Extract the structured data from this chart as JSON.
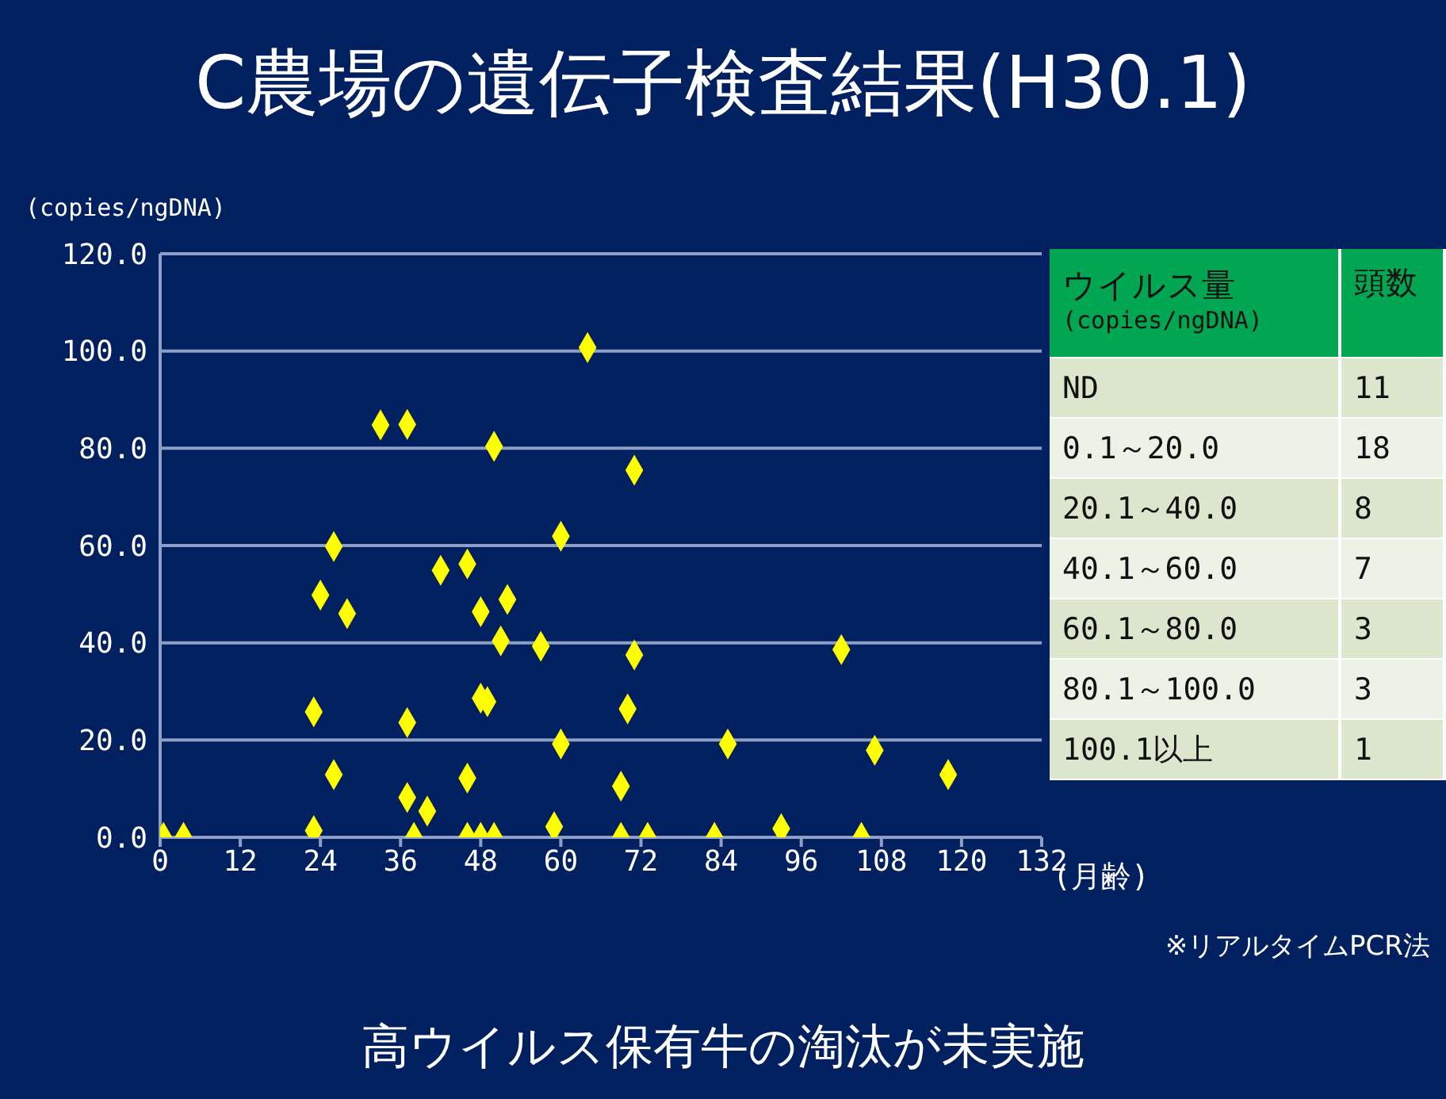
{
  "chart_data": [
    {
      "type": "scatter",
      "title": "C農場の遺伝子検査結果(H30.1)",
      "ylabel": "(copies/ngDNA)",
      "xlabel": "(月齢)",
      "annotations": [
        "※リアルタイムPCR法",
        "高ウイルス保有牛の淘汰が未実施"
      ],
      "series": [
        {
          "color": "#ffff00",
          "x": [
            0.5,
            3.5,
            33,
            37,
            26,
            24,
            28,
            42,
            23,
            37,
            26,
            37,
            40,
            23,
            38,
            64,
            50,
            71,
            60,
            46,
            52,
            48,
            51,
            57,
            71,
            48,
            49,
            70,
            60,
            85,
            46,
            69,
            59,
            46,
            48,
            50,
            69,
            73,
            83,
            102,
            107,
            118,
            93,
            105
          ],
          "values": [
            0,
            0,
            84.8,
            84.9,
            59.8,
            49.8,
            46,
            54.9,
            25.8,
            23.6,
            12.9,
            8.2,
            5.4,
            1.4,
            0,
            100.7,
            80.4,
            75.5,
            61.9,
            56.2,
            48.9,
            46.4,
            40.4,
            39.3,
            37.5,
            28.6,
            27.9,
            26.4,
            19.2,
            19.2,
            12.2,
            10.5,
            2.2,
            0,
            0,
            0,
            0,
            0,
            0,
            38.6,
            17.9,
            12.9,
            1.8,
            0
          ]
        }
      ],
      "xlim": [
        0,
        132
      ],
      "xticks": [
        0,
        12,
        24,
        36,
        48,
        60,
        72,
        84,
        96,
        108,
        120,
        132
      ],
      "ylim": [
        0,
        120
      ],
      "yticks": [
        {
          "value": 0,
          "label": "0.0"
        },
        {
          "value": 20,
          "label": "20.0"
        },
        {
          "value": 40,
          "label": "40.0"
        },
        {
          "value": 60,
          "label": "60.0"
        },
        {
          "value": 80,
          "label": "80.0"
        },
        {
          "value": 100,
          "label": "100.0"
        },
        {
          "value": 120,
          "label": "120.0"
        }
      ],
      "grid": "y",
      "marker": "diamond"
    },
    {
      "type": "other",
      "annotations": [
        "ウイルス量",
        "(copies/ngDNA)",
        "頭数"
      ],
      "categories": [
        "ND",
        "0.1～20.0",
        "20.1～40.0",
        "40.1～60.0",
        "60.1～80.0",
        "80.1～100.0",
        "100.1以上"
      ],
      "values": [
        11,
        18,
        8,
        7,
        3,
        3,
        1
      ],
      "data_labels": true
    }
  ]
}
